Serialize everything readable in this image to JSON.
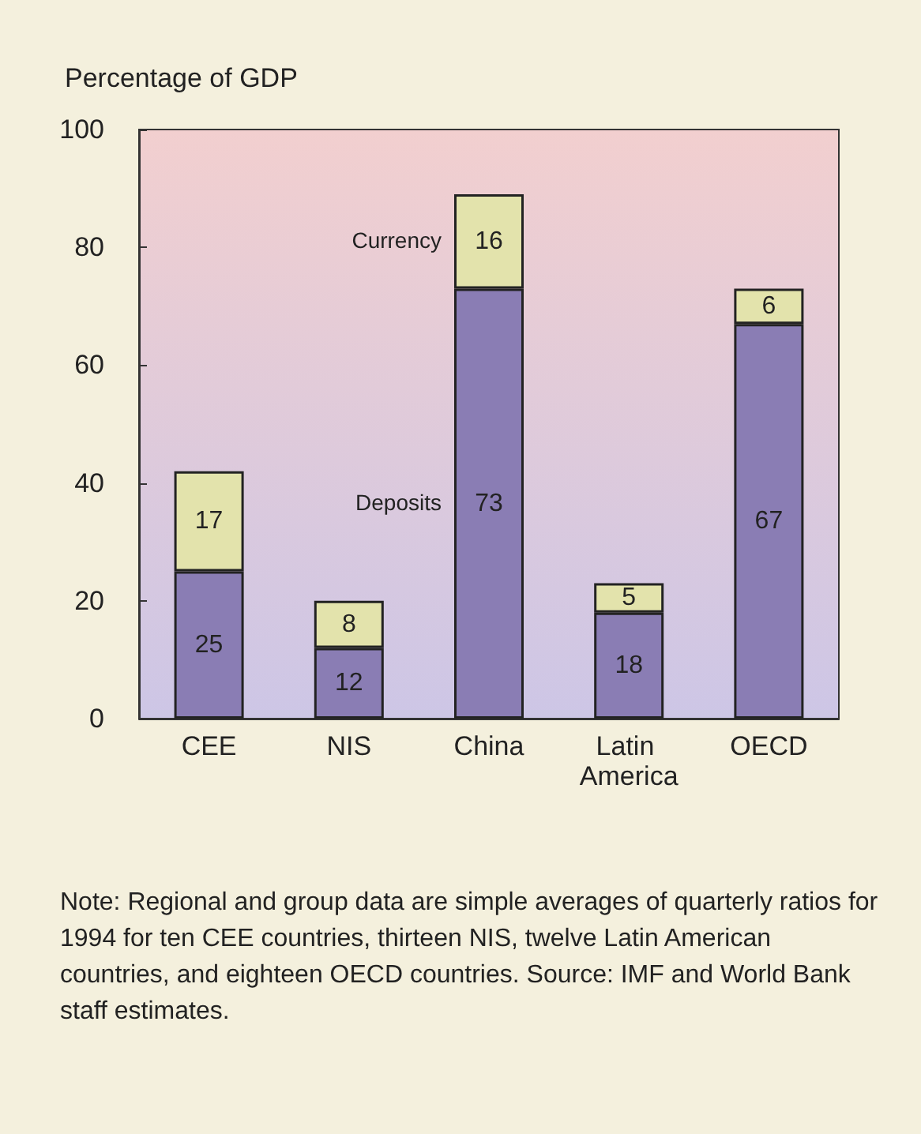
{
  "chart_data": {
    "type": "bar",
    "ylabel": "Percentage of GDP",
    "categories": [
      "CEE",
      "NIS",
      "China",
      "Latin America",
      "OECD"
    ],
    "series": [
      {
        "name": "Deposits",
        "color": "#8a7db4",
        "values": [
          25,
          12,
          73,
          18,
          67
        ]
      },
      {
        "name": "Currency",
        "color": "#e3e3ac",
        "values": [
          17,
          8,
          16,
          5,
          6
        ]
      }
    ],
    "stacked": true,
    "data_labels": true,
    "legend": false,
    "grid": false,
    "ylim": [
      0,
      100
    ],
    "yticks": [
      0,
      20,
      40,
      60,
      80,
      100
    ],
    "annotations": [
      "Note:  Regional and group data are simple averages of quarterly ratios for 1994 for ten CEE countries, thirteen NIS, twelve Latin American countries, and eighteen OECD countries. Source: IMF and World Bank staff estimates."
    ]
  }
}
